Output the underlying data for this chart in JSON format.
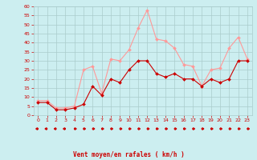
{
  "xlabel": "Vent moyen/en rafales ( km/h )",
  "background_color": "#cceef0",
  "grid_color": "#aacccc",
  "hours": [
    0,
    1,
    2,
    3,
    4,
    5,
    6,
    7,
    8,
    9,
    10,
    11,
    12,
    13,
    14,
    15,
    16,
    17,
    18,
    19,
    20,
    21,
    22,
    23
  ],
  "vent_moyen": [
    7,
    7,
    3,
    3,
    4,
    6,
    16,
    11,
    20,
    18,
    25,
    30,
    30,
    23,
    21,
    23,
    20,
    20,
    16,
    20,
    18,
    20,
    30,
    30
  ],
  "rafales": [
    8,
    8,
    4,
    4,
    5,
    25,
    27,
    12,
    31,
    30,
    36,
    48,
    58,
    42,
    41,
    37,
    28,
    27,
    16,
    25,
    26,
    37,
    43,
    31
  ],
  "color_moyen": "#cc0000",
  "color_rafales": "#ff9999",
  "ylim": [
    0,
    60
  ],
  "yticks": [
    0,
    5,
    10,
    15,
    20,
    25,
    30,
    35,
    40,
    45,
    50,
    55,
    60
  ],
  "xlim": [
    -0.5,
    23.5
  ],
  "tick_color": "#cc0000",
  "xlabel_color": "#cc0000"
}
